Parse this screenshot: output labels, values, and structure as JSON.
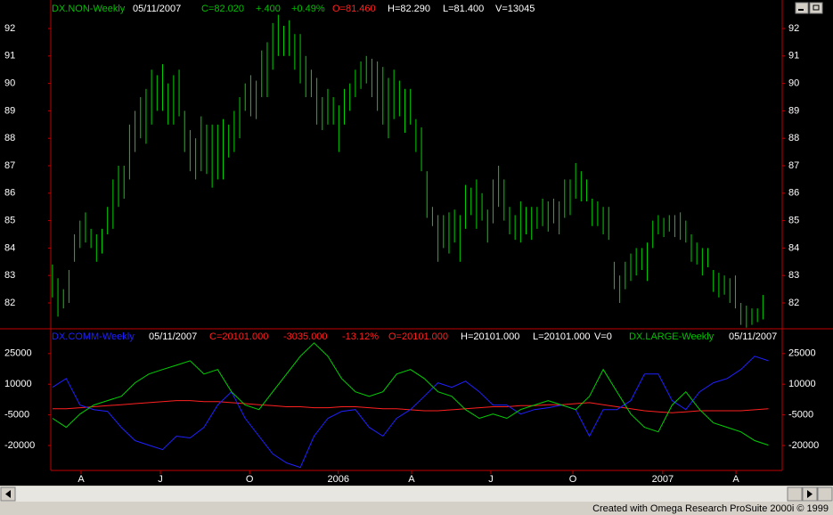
{
  "chart_data": [
    {
      "type": "hl",
      "info": [
        {
          "text": "DX.NON-Weekly",
          "color": "#00c000"
        },
        {
          "text": "05/11/2007",
          "color": "#ffffff"
        },
        {
          "text": "C=82.020",
          "color": "#00c000"
        },
        {
          "text": "+.400",
          "color": "#00c000"
        },
        {
          "text": "+0.49%",
          "color": "#00c000"
        },
        {
          "text": "O=81.460",
          "color": "#ff2020"
        },
        {
          "text": "H=82.290",
          "color": "#ffffff"
        },
        {
          "text": "L=81.400",
          "color": "#ffffff"
        },
        {
          "text": "V=13045",
          "color": "#ffffff"
        }
      ],
      "color": "#00d000",
      "xlim": [
        -0.3,
        132.5
      ],
      "ylim": [
        81.09,
        93.04
      ],
      "yticks": [
        82,
        83,
        84,
        85,
        86,
        87,
        88,
        89,
        90,
        91,
        92
      ],
      "high": [
        83.4,
        82.9,
        82.5,
        83.2,
        84.5,
        85.0,
        85.3,
        84.7,
        84.5,
        84.7,
        85.5,
        86.5,
        87.0,
        87.0,
        88.5,
        89.0,
        89.5,
        89.8,
        90.5,
        90.3,
        90.7,
        90.0,
        90.3,
        90.5,
        89.0,
        88.3,
        88.0,
        88.8,
        88.5,
        88.5,
        88.5,
        88.7,
        88.5,
        89.0,
        89.5,
        90.0,
        90.3,
        90.1,
        91.2,
        91.5,
        92.2,
        92.5,
        92.1,
        92.3,
        91.8,
        91.8,
        91.0,
        90.5,
        90.2,
        89.5,
        89.8,
        89.5,
        89.2,
        89.8,
        90.0,
        90.5,
        90.8,
        91.0,
        90.9,
        90.8,
        90.6,
        90.2,
        90.5,
        90.1,
        89.8,
        89.8,
        88.7,
        88.4,
        86.8,
        85.5,
        85.2,
        85.2,
        85.3,
        85.4,
        85.2,
        86.3,
        86.2,
        86.5,
        86.0,
        85.4,
        86.5,
        87.0,
        86.5,
        85.5,
        85.2,
        85.7,
        85.5,
        85.5,
        85.5,
        85.8,
        85.7,
        85.8,
        85.7,
        86.5,
        86.5,
        87.1,
        86.8,
        86.5,
        85.8,
        85.7,
        85.5,
        85.5,
        83.5,
        83.0,
        83.5,
        83.8,
        84.0,
        84.0,
        84.2,
        85.0,
        85.2,
        85.1,
        85.2,
        85.2,
        85.3,
        85.0,
        84.5,
        84.2,
        84.0,
        84.0,
        83.2,
        83.1,
        83.0,
        82.9,
        83.0,
        82.0,
        81.9,
        81.8,
        81.8,
        82.29
      ],
      "low": [
        82.2,
        81.5,
        81.8,
        82.0,
        83.5,
        84.0,
        84.2,
        84.0,
        83.5,
        83.8,
        84.5,
        84.7,
        85.5,
        85.8,
        86.5,
        87.5,
        88.0,
        87.8,
        88.5,
        89.0,
        89.0,
        88.5,
        88.5,
        88.8,
        87.5,
        86.8,
        86.5,
        86.8,
        86.7,
        86.2,
        86.5,
        86.5,
        87.3,
        87.5,
        88.0,
        89.0,
        88.8,
        88.7,
        89.5,
        89.5,
        90.5,
        91.0,
        91.0,
        91.0,
        90.5,
        90.0,
        89.5,
        89.5,
        88.5,
        88.3,
        88.5,
        88.5,
        87.5,
        88.5,
        89.0,
        89.5,
        89.8,
        90.0,
        89.5,
        89.0,
        88.5,
        88.0,
        88.7,
        88.8,
        88.2,
        88.5,
        87.5,
        86.8,
        85.1,
        84.8,
        83.5,
        84.0,
        83.8,
        84.2,
        83.5,
        84.7,
        85.2,
        84.7,
        85.0,
        84.2,
        84.9,
        85.5,
        85.0,
        84.5,
        84.3,
        84.2,
        84.5,
        84.3,
        84.7,
        84.8,
        84.6,
        84.9,
        84.5,
        85.1,
        85.2,
        85.8,
        85.7,
        85.7,
        84.8,
        84.8,
        84.5,
        84.3,
        82.5,
        82.0,
        82.5,
        82.8,
        83.0,
        83.2,
        82.8,
        84.0,
        84.5,
        84.4,
        84.6,
        84.4,
        84.3,
        84.2,
        83.5,
        83.4,
        83.0,
        83.3,
        82.4,
        82.2,
        82.3,
        82.0,
        81.8,
        81.2,
        81.1,
        81.2,
        81.3,
        81.4
      ]
    },
    {
      "type": "line",
      "info": [
        {
          "text": "DX.COMM-Weekly",
          "color": "#2020ff"
        },
        {
          "text": "05/11/2007",
          "color": "#ffffff"
        },
        {
          "text": "C=20101.000",
          "color": "#ff2020"
        },
        {
          "text": "-3035.000",
          "color": "#ff2020"
        },
        {
          "text": "-13.12%",
          "color": "#ff2020"
        },
        {
          "text": "O=20101.000",
          "color": "#ff2020"
        },
        {
          "text": "H=20101.000",
          "color": "#ffffff"
        },
        {
          "text": "L=20101.000",
          "color": "#ffffff"
        },
        {
          "text": "V=0",
          "color": "#ffffff"
        },
        {
          "text": "DX.LARGE-Weekly",
          "color": "#00c000"
        },
        {
          "text": "05/11/2007",
          "color": "#ffffff"
        }
      ],
      "xlim": [
        -0.3,
        132.5
      ],
      "xticks": [
        {
          "value": 5.2,
          "label": "A"
        },
        {
          "value": 19.6,
          "label": "J"
        },
        {
          "value": 35.8,
          "label": "O"
        },
        {
          "value": 51.9,
          "label": "2006"
        },
        {
          "value": 65.2,
          "label": "A"
        },
        {
          "value": 79.6,
          "label": "J"
        },
        {
          "value": 94.5,
          "label": "O"
        },
        {
          "value": 110.8,
          "label": "2007"
        },
        {
          "value": 124.1,
          "label": "A"
        }
      ],
      "ylim": [
        -32200,
        36700
      ],
      "yticks": [
        25000,
        10000,
        -5000,
        -20000
      ],
      "x": [
        0,
        2.5,
        5,
        7.5,
        10,
        12.5,
        15,
        17.5,
        20,
        22.5,
        25,
        27.5,
        30,
        32.5,
        35,
        37.5,
        40,
        42.5,
        45,
        47.5,
        50,
        52.5,
        55,
        57.5,
        60,
        62.5,
        65,
        67.5,
        70,
        72.5,
        75,
        77.5,
        80,
        82.5,
        85,
        87.5,
        90,
        92.5,
        95,
        97.5,
        100,
        102.5,
        105,
        107.5,
        110,
        112.5,
        115,
        117.5,
        120,
        122.5,
        125,
        127.5,
        130
      ],
      "series": [
        {
          "color": "#ff2020",
          "values": [
            -2000,
            -2000,
            -1500,
            -1000,
            -500,
            0,
            500,
            1000,
            1500,
            2000,
            2000,
            1500,
            1500,
            1000,
            500,
            0,
            -500,
            -1000,
            -1000,
            -1500,
            -1500,
            -1000,
            -1000,
            -1500,
            -2000,
            -2000,
            -2500,
            -3000,
            -3000,
            -2500,
            -2000,
            -1500,
            -1000,
            -1000,
            -500,
            -500,
            0,
            0,
            500,
            1000,
            0,
            -1000,
            -2000,
            -3000,
            -3500,
            -4000,
            -3500,
            -3000,
            -3000,
            -3000,
            -3000,
            -2500,
            -2000
          ]
        },
        {
          "color": "#2020ff",
          "values": [
            8500,
            12800,
            -200,
            -2400,
            -3300,
            -11100,
            -17600,
            -19800,
            -22000,
            -15400,
            -16300,
            -11100,
            -200,
            6300,
            -6700,
            -15400,
            -24100,
            -28500,
            -30700,
            -15400,
            -6700,
            -3300,
            -2400,
            -11100,
            -15400,
            -6700,
            -2400,
            4100,
            10700,
            8500,
            11500,
            6300,
            -200,
            -200,
            -4600,
            -2400,
            -1500,
            -200,
            -2400,
            -15400,
            -2400,
            -2400,
            2000,
            15000,
            15000,
            2000,
            -2400,
            6300,
            10700,
            12800,
            17200,
            23700,
            21500
          ]
        },
        {
          "color": "#00d000",
          "values": [
            -6700,
            -11100,
            -4600,
            -200,
            2000,
            4100,
            10700,
            15000,
            17200,
            19300,
            21500,
            15000,
            17200,
            6300,
            -200,
            -2400,
            6300,
            15000,
            23700,
            30200,
            23700,
            12800,
            6300,
            4100,
            6300,
            15000,
            17200,
            12800,
            6300,
            4100,
            -2400,
            -6700,
            -4600,
            -6700,
            -2400,
            -200,
            2000,
            -200,
            -2400,
            4100,
            17200,
            6300,
            -4600,
            -11100,
            -13300,
            -200,
            6300,
            -2400,
            -8900,
            -11100,
            -13300,
            -17600,
            -19800
          ]
        }
      ]
    }
  ],
  "footer": "Created with Omega Research ProSuite 2000i © 1999"
}
